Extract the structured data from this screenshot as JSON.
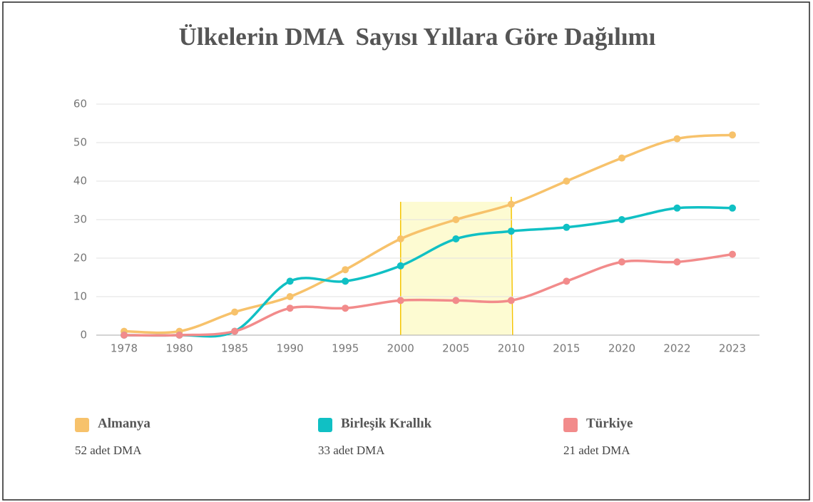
{
  "chart_data": {
    "type": "line",
    "title": "Ülkelerin DMA  Sayısı Yıllara Göre Dağılımı",
    "categories": [
      "1978",
      "1980",
      "1985",
      "1990",
      "1995",
      "2000",
      "2005",
      "2010",
      "2015",
      "2020",
      "2022",
      "2023"
    ],
    "series": [
      {
        "name": "Almanya",
        "color": "#f7c26b",
        "values": [
          1,
          1,
          6,
          10,
          17,
          25,
          30,
          34,
          40,
          46,
          51,
          52
        ],
        "note": "52 adet DMA"
      },
      {
        "name": "Birleşik Krallık",
        "color": "#10c0c4",
        "values": [
          0,
          0,
          1,
          14,
          14,
          18,
          25,
          27,
          28,
          30,
          33,
          33
        ],
        "note": "33 adet DMA"
      },
      {
        "name": "Türkiye",
        "color": "#f28b8b",
        "values": [
          0,
          0,
          1,
          7,
          7,
          9,
          9,
          9,
          14,
          19,
          19,
          21
        ],
        "note": "21 adet DMA"
      }
    ],
    "highlight": [
      "2000",
      "2010"
    ],
    "ylim": [
      0,
      60
    ],
    "yticks": [
      0,
      10,
      20,
      30,
      40,
      50,
      60
    ],
    "grid": true,
    "legend": "bottom"
  }
}
